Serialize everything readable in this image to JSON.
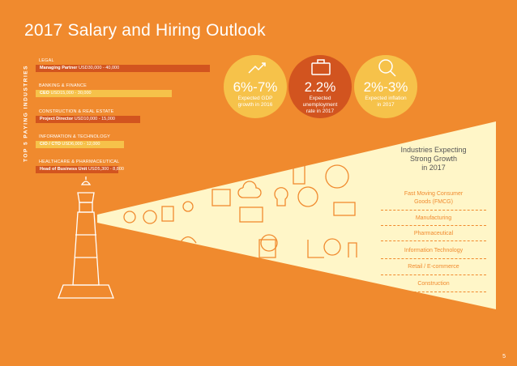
{
  "title": "2017 Salary and Hiring Outlook",
  "vertical_label": "TOP 5 PAYING INDUSTRIES",
  "industries": [
    {
      "name": "LEGAL",
      "role": "Managing Partner",
      "salary": "USD30,000 - 40,000",
      "bar_color": "#d2541f",
      "fill": 0.65
    },
    {
      "name": "BANKING & FINANCE",
      "role": "CEO",
      "salary": "USD15,000 - 30,000",
      "bar_color": "#f6c24a",
      "fill": 0.51
    },
    {
      "name": "CONSTRUCTION & REAL ESTATE",
      "role": "Project Director",
      "salary": "USD10,000 - 15,000",
      "bar_color": "#d2541f",
      "fill": 0.39
    },
    {
      "name": "INFORMATION & TECHNOLOGY",
      "role": "CIO / CTO",
      "salary": "USD6,000 - 12,000",
      "bar_color": "#f6c24a",
      "fill": 0.33
    },
    {
      "name": "HEALTHCARE & PHARMACEUTICAL",
      "role": "Head of Business Unit",
      "salary": "USD5,300 - 8,800",
      "bar_color": "#d2541f",
      "fill": 0.31
    }
  ],
  "stats": [
    {
      "value": "6%-7%",
      "label_1": "Expected GDP",
      "label_2": "growth in 2016",
      "label_3": "",
      "icon": "chart-up-icon",
      "color": "#f6c24a"
    },
    {
      "value": "2.2%",
      "label_1": "Expected",
      "label_2": "unemployment",
      "label_3": "rate in 2017",
      "icon": "briefcase-icon",
      "color": "#d2541f"
    },
    {
      "value": "2%-3%",
      "label_1": "Expected inflation",
      "label_2": "in 2017",
      "label_3": "",
      "icon": "magnifier-icon",
      "color": "#f6c24a"
    }
  ],
  "panel": {
    "heading_1": "Industries Expecting",
    "heading_2": "Strong Growth",
    "heading_3": "in 2017",
    "items": [
      "Fast Moving Consumer",
      "Goods (FMCG)",
      "Manufacturing",
      "Pharmaceutical",
      "Information Technology",
      "Retail / E-commerce",
      "Construction"
    ]
  },
  "page_number": "5",
  "colors": {
    "background": "#f08a2e",
    "beam": "#fff6c8",
    "dark_orange": "#d2541f",
    "yellow": "#f6c24a"
  }
}
